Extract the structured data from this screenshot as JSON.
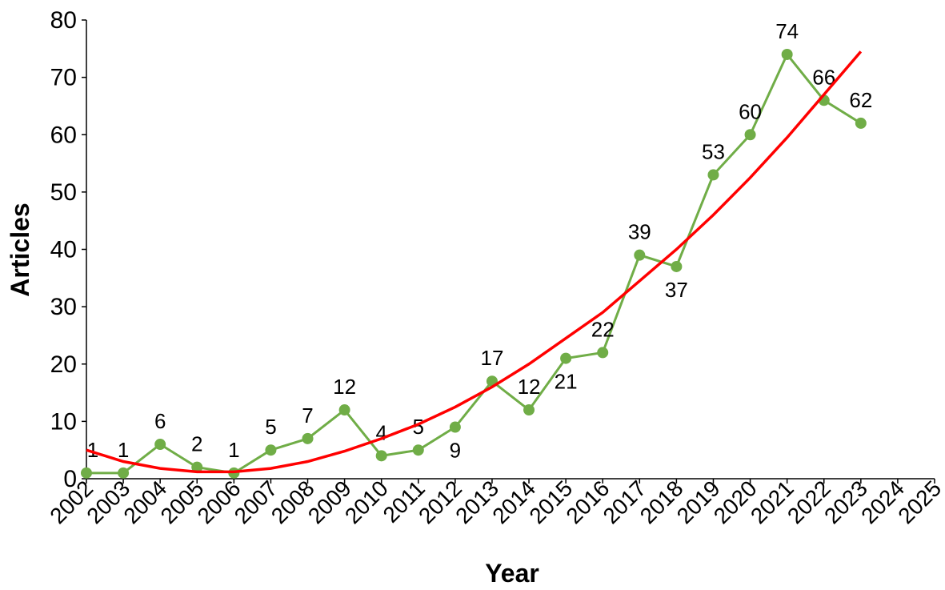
{
  "chart_data": {
    "type": "line",
    "xlabel": "Year",
    "ylabel": "Articles",
    "categories": [
      "2002",
      "2003",
      "2004",
      "2005",
      "2006",
      "2007",
      "2008",
      "2009",
      "2010",
      "2011",
      "2012",
      "2013",
      "2014",
      "2015",
      "2016",
      "2017",
      "2018",
      "2019",
      "2020",
      "2021",
      "2022",
      "2023",
      "2024",
      "2025"
    ],
    "series": [
      {
        "color": "#70ad47",
        "markers": true,
        "data_labels": true,
        "values": [
          1,
          1,
          6,
          2,
          1,
          5,
          7,
          12,
          4,
          5,
          9,
          17,
          12,
          21,
          22,
          39,
          37,
          53,
          60,
          74,
          66,
          62,
          null,
          null
        ]
      },
      {
        "color": "#ff0000",
        "markers": false,
        "data_labels": false,
        "values": [
          5,
          3,
          1.8,
          1.2,
          1.2,
          1.8,
          3,
          4.8,
          7,
          9.5,
          12.5,
          16,
          20,
          24.5,
          29,
          34.5,
          40,
          46,
          52.5,
          59.5,
          67,
          74.5,
          null,
          null
        ]
      }
    ],
    "ylim": [
      0,
      80
    ],
    "yticks": [
      0,
      10,
      20,
      30,
      40,
      50,
      60,
      70,
      80
    ],
    "grid": false
  }
}
